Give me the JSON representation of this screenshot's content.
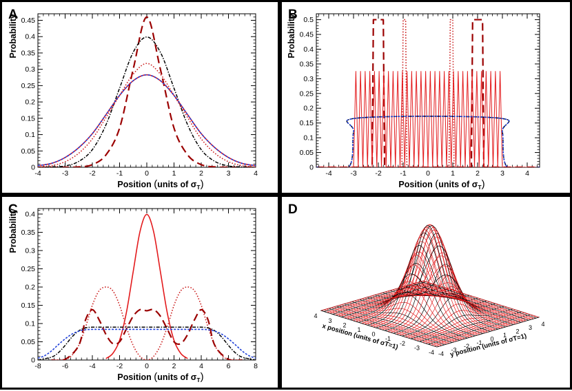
{
  "panels": {
    "a": {
      "letter": "A"
    },
    "b": {
      "letter": "B"
    },
    "c": {
      "letter": "C"
    },
    "d": {
      "letter": "D"
    }
  },
  "colors": {
    "solid": "#e31a1c",
    "dashed": "#9b0000",
    "dotted": "#cc2222",
    "dashdot": "#000000",
    "dashblue": "#1f3fd8"
  },
  "chart_data": [
    {
      "id": "A",
      "type": "line",
      "xlabel": "Position (units of σT)",
      "ylabel": "Probability",
      "xlim": [
        -4,
        4
      ],
      "ylim": [
        0,
        0.47
      ],
      "xticks": [
        -4,
        -3,
        -2,
        -1,
        0,
        1,
        2,
        3,
        4
      ],
      "yticks": [
        0,
        0.05,
        0.1,
        0.15,
        0.2,
        0.25,
        0.3,
        0.35,
        0.4,
        0.45
      ],
      "ytick_labels": [
        "0",
        "0.05",
        "0.1",
        "0.15",
        "0.2",
        "0.25",
        "0.3",
        "0.35",
        "0.4",
        "0.45"
      ],
      "series": [
        {
          "style": "dashed",
          "x": [
            -4,
            -3.5,
            -3,
            -2.5,
            -2,
            -1.5,
            -1,
            -0.5,
            0,
            0.5,
            1,
            1.5,
            2,
            2.5,
            3,
            3.5,
            4
          ],
          "values": [
            0,
            0,
            0,
            0.001,
            0.008,
            0.038,
            0.12,
            0.3,
            0.46,
            0.3,
            0.12,
            0.038,
            0.008,
            0.001,
            0,
            0,
            0
          ]
        },
        {
          "style": "dashdot",
          "x": [
            -4,
            -3.5,
            -3,
            -2.5,
            -2,
            -1.5,
            -1,
            -0.5,
            0,
            0.5,
            1,
            1.5,
            2,
            2.5,
            3,
            3.5,
            4
          ],
          "values": [
            0,
            0.001,
            0.004,
            0.018,
            0.054,
            0.13,
            0.242,
            0.352,
            0.399,
            0.352,
            0.242,
            0.13,
            0.054,
            0.018,
            0.004,
            0.001,
            0
          ]
        },
        {
          "style": "dotted",
          "x": [
            -4,
            -3.5,
            -3,
            -2.5,
            -2,
            -1.5,
            -1,
            -0.5,
            0,
            0.5,
            1,
            1.5,
            2,
            2.5,
            3,
            3.5,
            4
          ],
          "values": [
            0.001,
            0.005,
            0.017,
            0.043,
            0.087,
            0.152,
            0.22,
            0.285,
            0.318,
            0.285,
            0.22,
            0.152,
            0.087,
            0.043,
            0.017,
            0.005,
            0.001
          ]
        },
        {
          "style": "solid",
          "x": [
            -4,
            -3.5,
            -3,
            -2.5,
            -2,
            -1.5,
            -1,
            -0.5,
            0,
            0.5,
            1,
            1.5,
            2,
            2.5,
            3,
            3.5,
            4
          ],
          "values": [
            0.005,
            0.012,
            0.03,
            0.06,
            0.103,
            0.161,
            0.22,
            0.265,
            0.283,
            0.265,
            0.22,
            0.161,
            0.103,
            0.06,
            0.03,
            0.012,
            0.005
          ]
        },
        {
          "style": "dashblue",
          "x": [
            -4,
            -3.5,
            -3,
            -2.5,
            -2,
            -1.5,
            -1,
            -0.5,
            0,
            0.5,
            1,
            1.5,
            2,
            2.5,
            3,
            3.5,
            4
          ],
          "values": [
            0.005,
            0.012,
            0.03,
            0.06,
            0.103,
            0.161,
            0.22,
            0.265,
            0.283,
            0.265,
            0.22,
            0.161,
            0.103,
            0.06,
            0.03,
            0.012,
            0.005
          ]
        }
      ]
    },
    {
      "id": "B",
      "type": "line",
      "xlabel": "Position (units of σT)",
      "ylabel": "Probability",
      "xlim": [
        -4.5,
        4.5
      ],
      "ylim": [
        0,
        0.52
      ],
      "xticks": [
        -4,
        -3,
        -2,
        -1,
        0,
        1,
        2,
        3,
        4
      ],
      "yticks": [
        0,
        0.05,
        0.1,
        0.15,
        0.2,
        0.25,
        0.3,
        0.35,
        0.4,
        0.45,
        0.5
      ],
      "ytick_labels": [
        "0",
        "0.05",
        "0.1",
        "0.15",
        "0.2",
        "0.25",
        "0.3",
        "0.35",
        "0.4",
        "0.45",
        "0.5"
      ],
      "series": [
        {
          "style": "dashed",
          "x": [
            -4.5,
            -2.25,
            -2.2,
            -1.8,
            -1.75,
            1.75,
            1.8,
            2.2,
            2.25,
            4.5
          ],
          "values": [
            0,
            0,
            0.5,
            0.5,
            0,
            0,
            0.5,
            0.5,
            0,
            0
          ]
        },
        {
          "style": "dotted",
          "x": [
            -4.5,
            -1.05,
            -1.0,
            -0.9,
            -0.85,
            0.85,
            0.9,
            1.0,
            1.05,
            4.5
          ],
          "values": [
            0,
            0,
            0.5,
            0.5,
            0,
            0,
            0.5,
            0.5,
            0,
            0
          ]
        },
        {
          "style": "solid",
          "oscillation": {
            "x_start": -3.0,
            "x_end": 3.0,
            "peaks": 32,
            "peak_value": 0.325
          }
        },
        {
          "style": "dashdot",
          "x": [
            -4.5,
            -3.2,
            -3.0,
            -2.8,
            2.8,
            3.0,
            3.2,
            4.5
          ],
          "values": [
            0,
            0,
            0.12,
            0.167,
            0.167,
            0.12,
            0,
            0
          ]
        },
        {
          "style": "dashblue",
          "x": [
            -4.5,
            -3.2,
            -3.0,
            -2.8,
            2.8,
            3.0,
            3.2,
            4.5
          ],
          "values": [
            0,
            0,
            0.12,
            0.167,
            0.167,
            0.12,
            0,
            0
          ]
        }
      ]
    },
    {
      "id": "C",
      "type": "line",
      "xlabel": "Position (units of σT)",
      "ylabel": "Probability",
      "xlim": [
        -8,
        8
      ],
      "ylim": [
        0,
        0.415
      ],
      "xticks": [
        -8,
        -6,
        -4,
        -2,
        0,
        2,
        4,
        6,
        8
      ],
      "yticks": [
        0,
        0.05,
        0.1,
        0.15,
        0.2,
        0.25,
        0.3,
        0.35,
        0.4
      ],
      "ytick_labels": [
        "0",
        "0.05",
        "0.1",
        "0.15",
        "0.2",
        "0.25",
        "0.3",
        "0.35",
        "0.4"
      ],
      "series": [
        {
          "style": "solid",
          "x": [
            -3,
            -2.5,
            -2,
            -1.5,
            -1,
            -0.5,
            0,
            0.5,
            1,
            1.5,
            2,
            2.5,
            3
          ],
          "values": [
            0.004,
            0.018,
            0.054,
            0.13,
            0.242,
            0.352,
            0.399,
            0.352,
            0.242,
            0.13,
            0.054,
            0.018,
            0.004
          ]
        },
        {
          "style": "dotted",
          "x": [
            -7,
            -6,
            -5.5,
            -5,
            -4.5,
            -4,
            -3.5,
            -3,
            -2.5,
            -2,
            -1.5,
            -1,
            -0.5,
            0,
            0.5,
            1,
            1.5,
            2,
            2.5,
            3,
            3.5,
            4,
            4.5,
            5,
            5.5,
            6,
            7
          ],
          "values": [
            0,
            0.002,
            0.013,
            0.04,
            0.09,
            0.15,
            0.19,
            0.2,
            0.19,
            0.15,
            0.09,
            0.04,
            0.01,
            0,
            0.01,
            0.04,
            0.09,
            0.15,
            0.19,
            0.2,
            0.19,
            0.15,
            0.09,
            0.04,
            0.013,
            0.002,
            0
          ]
        },
        {
          "style": "dashed",
          "x": [
            -7,
            -6,
            -5,
            -4.5,
            -4,
            -3.5,
            -3,
            -2.5,
            -2,
            -1.5,
            -1,
            -0.5,
            0,
            0.5,
            1,
            1.5,
            2,
            2.5,
            3,
            3.5,
            4,
            4.5,
            5,
            6,
            7
          ],
          "values": [
            0,
            0.002,
            0.04,
            0.11,
            0.138,
            0.11,
            0.07,
            0.045,
            0.05,
            0.085,
            0.12,
            0.138,
            0.135,
            0.138,
            0.12,
            0.085,
            0.05,
            0.045,
            0.07,
            0.11,
            0.138,
            0.11,
            0.04,
            0.002,
            0
          ]
        },
        {
          "style": "dashdot",
          "x": [
            -8,
            -7,
            -6.5,
            -6,
            -5.5,
            -5,
            -4.5,
            -4,
            -3,
            3,
            4,
            4.5,
            5,
            5.5,
            6,
            6.5,
            7,
            8
          ],
          "values": [
            0,
            0.008,
            0.02,
            0.04,
            0.063,
            0.08,
            0.088,
            0.09,
            0.09,
            0.09,
            0.09,
            0.088,
            0.08,
            0.063,
            0.04,
            0.02,
            0.008,
            0
          ]
        },
        {
          "style": "dashblue",
          "x": [
            -8,
            -7.5,
            -7,
            -6.5,
            -6,
            -5.5,
            -5,
            -4.5,
            -4,
            -3,
            3,
            4,
            4.5,
            5,
            5.5,
            6,
            6.5,
            7,
            7.5,
            8
          ],
          "values": [
            0.005,
            0.012,
            0.025,
            0.042,
            0.058,
            0.071,
            0.079,
            0.083,
            0.084,
            0.084,
            0.084,
            0.084,
            0.083,
            0.079,
            0.071,
            0.058,
            0.042,
            0.025,
            0.012,
            0.005
          ]
        }
      ]
    },
    {
      "id": "D",
      "type": "surface",
      "function": "2D gaussian centred at (0,0) with sigma 1",
      "xlabel": "x position (units of σT=1)",
      "ylabel": "y position (units of σT=1)",
      "xlim": [
        -4,
        4
      ],
      "ylim": [
        -4,
        4
      ],
      "x_tick_labels": [
        "4",
        "3",
        "2",
        "1",
        "0",
        "-1",
        "-2",
        "-3",
        "-4"
      ],
      "y_tick_labels": [
        "-4",
        "-3",
        "-2",
        "-1",
        "0",
        "1",
        "2",
        "3",
        "4"
      ]
    }
  ]
}
